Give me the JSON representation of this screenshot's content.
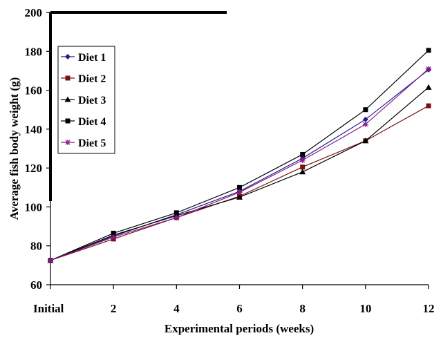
{
  "chart_data": {
    "type": "line",
    "title": "",
    "xlabel": "Experimental periods (weeks)",
    "ylabel": "Average fish body weight (g)",
    "categories": [
      "Initial",
      "2",
      "4",
      "6",
      "8",
      "10",
      "12"
    ],
    "ylim": [
      60,
      200
    ],
    "yticks": [
      60,
      80,
      100,
      120,
      140,
      160,
      180,
      200
    ],
    "grid": false,
    "legend_position": "top-left",
    "series": [
      {
        "name": "Diet 1",
        "marker": "diamond",
        "color": "#1f1f8f",
        "values": [
          72.5,
          85,
          96,
          108,
          125,
          145,
          170.5
        ]
      },
      {
        "name": "Diet 2",
        "marker": "square",
        "color": "#7a1010",
        "values": [
          72.5,
          83.5,
          94.5,
          105.5,
          120.5,
          134,
          152
        ]
      },
      {
        "name": "Diet 3",
        "marker": "triangle",
        "color": "#000000",
        "values": [
          72.5,
          85.5,
          95.5,
          105,
          118,
          134,
          161.5
        ]
      },
      {
        "name": "Diet 4",
        "marker": "square",
        "color": "#000000",
        "values": [
          72.5,
          86.5,
          97,
          110,
          127,
          150,
          180.5
        ]
      },
      {
        "name": "Diet 5",
        "marker": "star",
        "color": "#8a1a8a",
        "values": [
          72.5,
          84.5,
          94.5,
          107.5,
          124,
          142.5,
          171
        ]
      }
    ]
  }
}
